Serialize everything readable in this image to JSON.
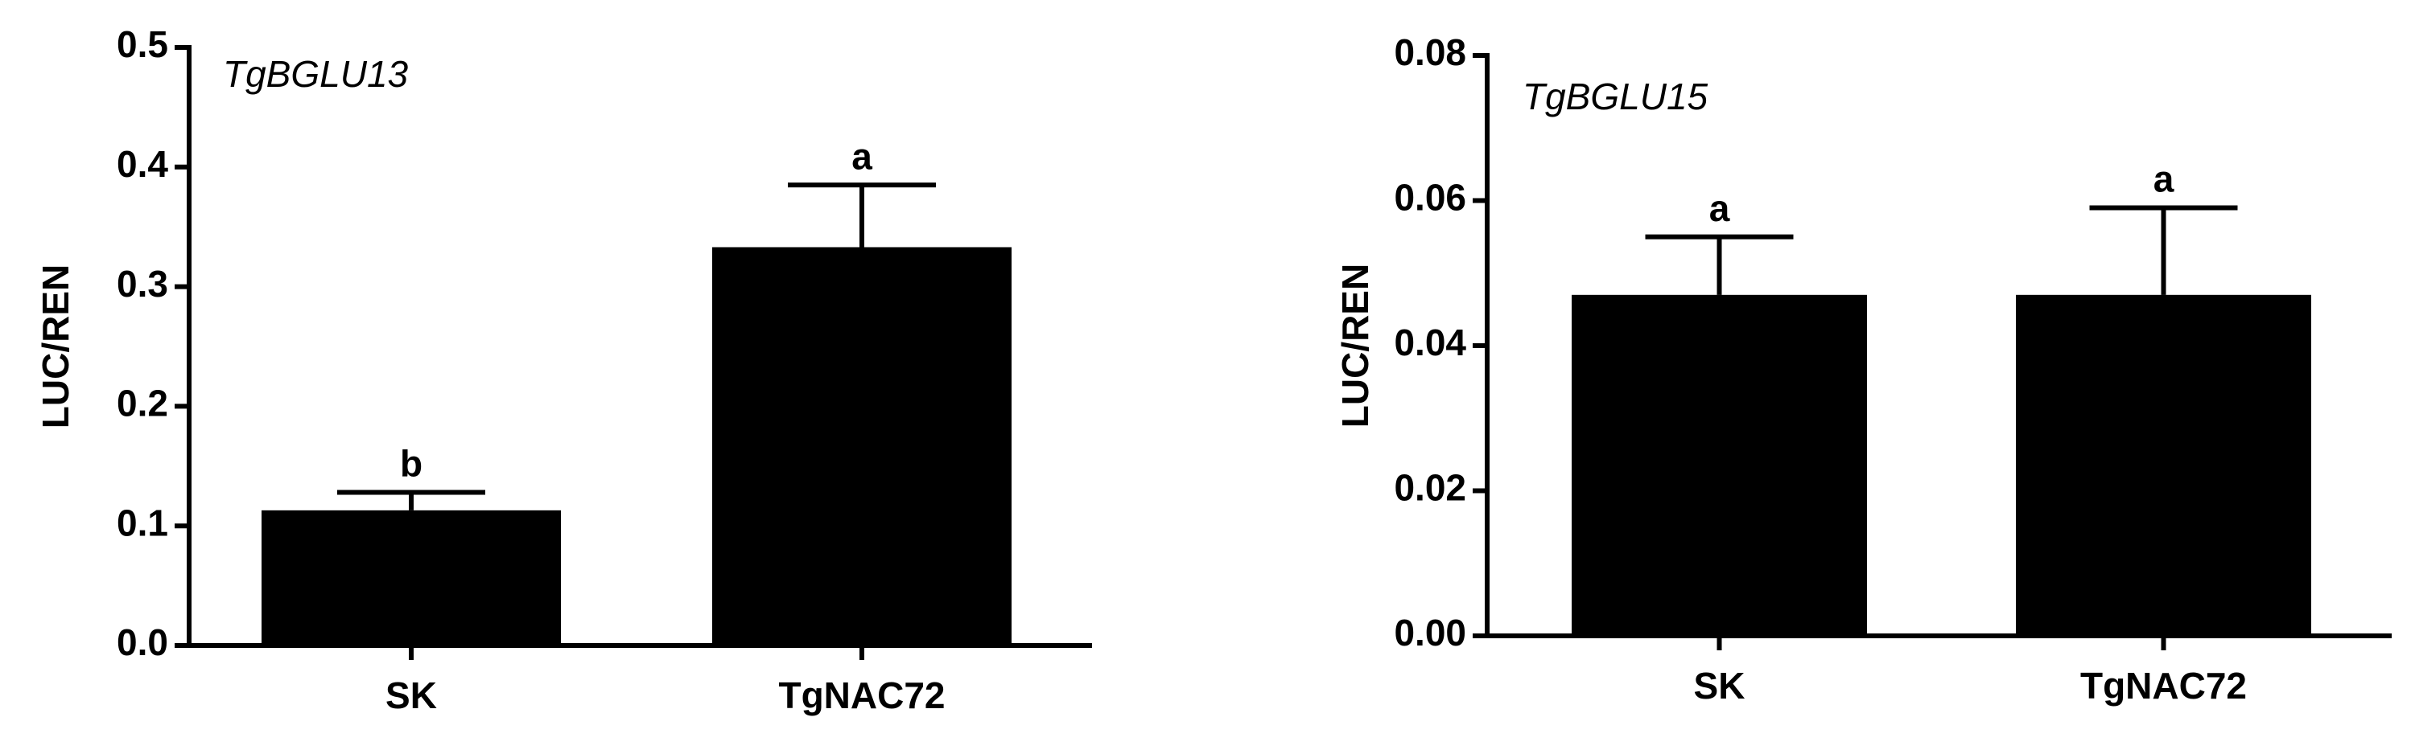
{
  "chart_data": [
    {
      "type": "bar",
      "title": "TgBGLU13",
      "y_label": "LUC/REN",
      "categories": [
        "SK",
        "TgNAC72"
      ],
      "values": [
        0.113,
        0.333
      ],
      "errors": [
        0.015,
        0.052
      ],
      "significance_labels": [
        "b",
        "a"
      ],
      "color": "#000000",
      "ylim": [
        0,
        0.5
      ],
      "yticks": [
        {
          "value": 0,
          "label": "0.0"
        },
        0.1,
        0.2,
        0.3,
        0.4,
        0.5
      ]
    },
    {
      "type": "bar",
      "title": "TgBGLU15",
      "y_label": "LUC/REN",
      "categories": [
        "SK",
        "TgNAC72"
      ],
      "values": [
        0.047,
        0.047
      ],
      "errors": [
        0.008,
        0.012
      ],
      "significance_labels": [
        "a",
        "a"
      ],
      "color": "#000000",
      "ylim": [
        0,
        0.08
      ],
      "yticks": [
        {
          "value": 0,
          "label": "0.00"
        },
        {
          "value": 0.02,
          "label": "0.02"
        },
        {
          "value": 0.04,
          "label": "0.04"
        },
        {
          "value": 0.06,
          "label": "0.06"
        },
        {
          "value": 0.08,
          "label": "0.08"
        }
      ]
    }
  ]
}
